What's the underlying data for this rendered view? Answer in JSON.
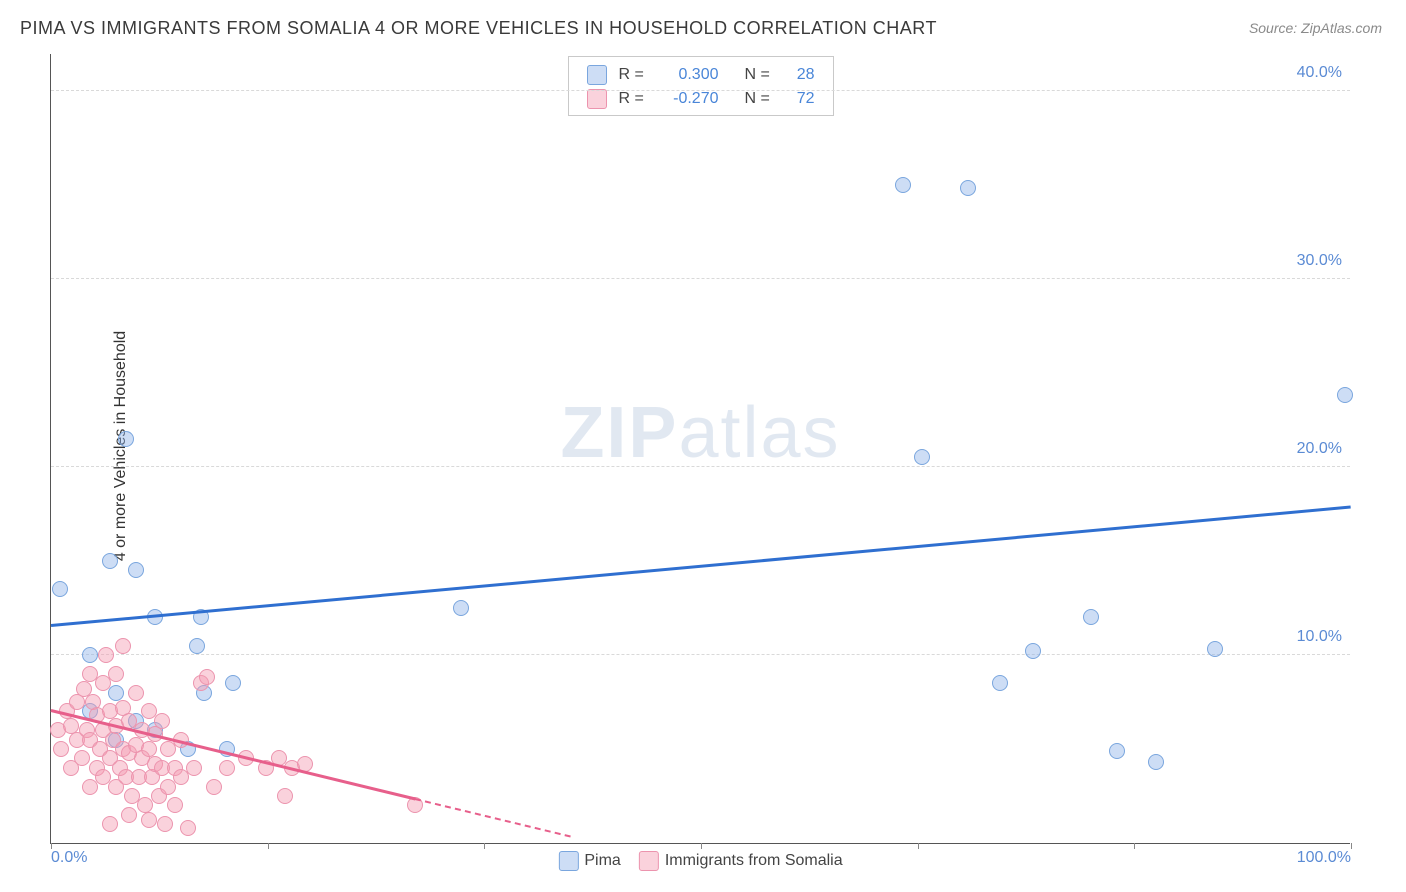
{
  "title": "PIMA VS IMMIGRANTS FROM SOMALIA 4 OR MORE VEHICLES IN HOUSEHOLD CORRELATION CHART",
  "source": "Source: ZipAtlas.com",
  "ylabel": "4 or more Vehicles in Household",
  "watermark_zip": "ZIP",
  "watermark_atlas": "atlas",
  "chart": {
    "type": "scatter",
    "xlim": [
      0,
      100
    ],
    "ylim": [
      0,
      42
    ],
    "x_ticks": [
      0,
      16.67,
      33.33,
      50,
      66.67,
      83.33,
      100
    ],
    "x_tick_labels": [
      "0.0%",
      "",
      "",
      "",
      "",
      "",
      "100.0%"
    ],
    "y_gridlines": [
      10,
      20,
      30,
      40
    ],
    "y_tick_labels": [
      "10.0%",
      "20.0%",
      "30.0%",
      "40.0%"
    ],
    "grid_color": "#d9d9d9",
    "background_color": "#ffffff",
    "axis_color": "#555555",
    "tick_label_color": "#5b8bd4",
    "marker_radius": 8,
    "series": [
      {
        "name": "Pima",
        "fill": "rgba(144,180,232,0.45)",
        "stroke": "#7aa6de",
        "trend_color": "#2f6fd0",
        "trend": {
          "x1": 0,
          "y1": 11.5,
          "x2": 100,
          "y2": 17.8
        },
        "R": "0.300",
        "N": "28",
        "points": [
          [
            0.7,
            13.5
          ],
          [
            3.0,
            10.0
          ],
          [
            5.8,
            21.5
          ],
          [
            4.5,
            15.0
          ],
          [
            6.5,
            14.5
          ],
          [
            8.0,
            12.0
          ],
          [
            11.5,
            12.0
          ],
          [
            11.8,
            8.0
          ],
          [
            11.2,
            10.5
          ],
          [
            14.0,
            8.5
          ],
          [
            10.5,
            5.0
          ],
          [
            13.5,
            5.0
          ],
          [
            8.0,
            6.0
          ],
          [
            3.0,
            7.0
          ],
          [
            5.0,
            8.0
          ],
          [
            31.5,
            12.5
          ],
          [
            65.5,
            35.0
          ],
          [
            70.5,
            34.8
          ],
          [
            67.0,
            20.5
          ],
          [
            73.0,
            8.5
          ],
          [
            75.5,
            10.2
          ],
          [
            80.0,
            12.0
          ],
          [
            82.0,
            4.9
          ],
          [
            85.0,
            4.3
          ],
          [
            89.5,
            10.3
          ],
          [
            99.5,
            23.8
          ],
          [
            5.0,
            5.5
          ],
          [
            6.5,
            6.5
          ]
        ]
      },
      {
        "name": "Immigrants from Somalia",
        "fill": "rgba(244,156,178,0.45)",
        "stroke": "#ec94ae",
        "trend_color": "#e75f8b",
        "trend_solid": {
          "x1": 0,
          "y1": 7.0,
          "x2": 28,
          "y2": 2.3
        },
        "trend_dashed": {
          "x1": 28,
          "y1": 2.3,
          "x2": 40,
          "y2": 0.3
        },
        "R": "-0.270",
        "N": "72",
        "points": [
          [
            0.5,
            6.0
          ],
          [
            0.8,
            5.0
          ],
          [
            1.2,
            7.0
          ],
          [
            1.5,
            4.0
          ],
          [
            1.5,
            6.2
          ],
          [
            2.0,
            5.5
          ],
          [
            2.0,
            7.5
          ],
          [
            2.4,
            4.5
          ],
          [
            2.5,
            8.2
          ],
          [
            2.8,
            6.0
          ],
          [
            3.0,
            3.0
          ],
          [
            3.0,
            5.5
          ],
          [
            3.2,
            7.5
          ],
          [
            3.5,
            4.0
          ],
          [
            3.5,
            6.8
          ],
          [
            3.8,
            5.0
          ],
          [
            4.0,
            3.5
          ],
          [
            4.0,
            6.0
          ],
          [
            4.0,
            8.5
          ],
          [
            4.2,
            10.0
          ],
          [
            4.5,
            4.5
          ],
          [
            4.5,
            7.0
          ],
          [
            4.8,
            5.5
          ],
          [
            5.0,
            3.0
          ],
          [
            5.0,
            6.2
          ],
          [
            5.0,
            9.0
          ],
          [
            5.3,
            4.0
          ],
          [
            5.5,
            5.0
          ],
          [
            5.5,
            7.2
          ],
          [
            5.5,
            10.5
          ],
          [
            5.8,
            3.5
          ],
          [
            6.0,
            4.8
          ],
          [
            6.0,
            6.5
          ],
          [
            6.2,
            2.5
          ],
          [
            6.5,
            5.2
          ],
          [
            6.5,
            8.0
          ],
          [
            6.8,
            3.5
          ],
          [
            7.0,
            4.5
          ],
          [
            7.0,
            6.0
          ],
          [
            7.2,
            2.0
          ],
          [
            7.5,
            5.0
          ],
          [
            7.5,
            7.0
          ],
          [
            7.8,
            3.5
          ],
          [
            8.0,
            4.2
          ],
          [
            8.0,
            5.8
          ],
          [
            8.3,
            2.5
          ],
          [
            8.5,
            4.0
          ],
          [
            8.5,
            6.5
          ],
          [
            8.8,
            1.0
          ],
          [
            9.0,
            3.0
          ],
          [
            9.0,
            5.0
          ],
          [
            9.5,
            4.0
          ],
          [
            9.5,
            2.0
          ],
          [
            10.0,
            3.5
          ],
          [
            10.0,
            5.5
          ],
          [
            10.5,
            0.8
          ],
          [
            11.0,
            4.0
          ],
          [
            11.5,
            8.5
          ],
          [
            12.0,
            8.8
          ],
          [
            12.5,
            3.0
          ],
          [
            13.5,
            4.0
          ],
          [
            15.0,
            4.5
          ],
          [
            16.5,
            4.0
          ],
          [
            17.5,
            4.5
          ],
          [
            18.0,
            2.5
          ],
          [
            18.5,
            4.0
          ],
          [
            19.5,
            4.2
          ],
          [
            28.0,
            2.0
          ],
          [
            6.0,
            1.5
          ],
          [
            7.5,
            1.2
          ],
          [
            4.5,
            1.0
          ],
          [
            3.0,
            9.0
          ]
        ]
      }
    ],
    "legend_top": {
      "r_label": "R =",
      "n_label": "N =",
      "value_color": "#4a86d8"
    },
    "legend_bottom": [
      "Pima",
      "Immigrants from Somalia"
    ]
  }
}
